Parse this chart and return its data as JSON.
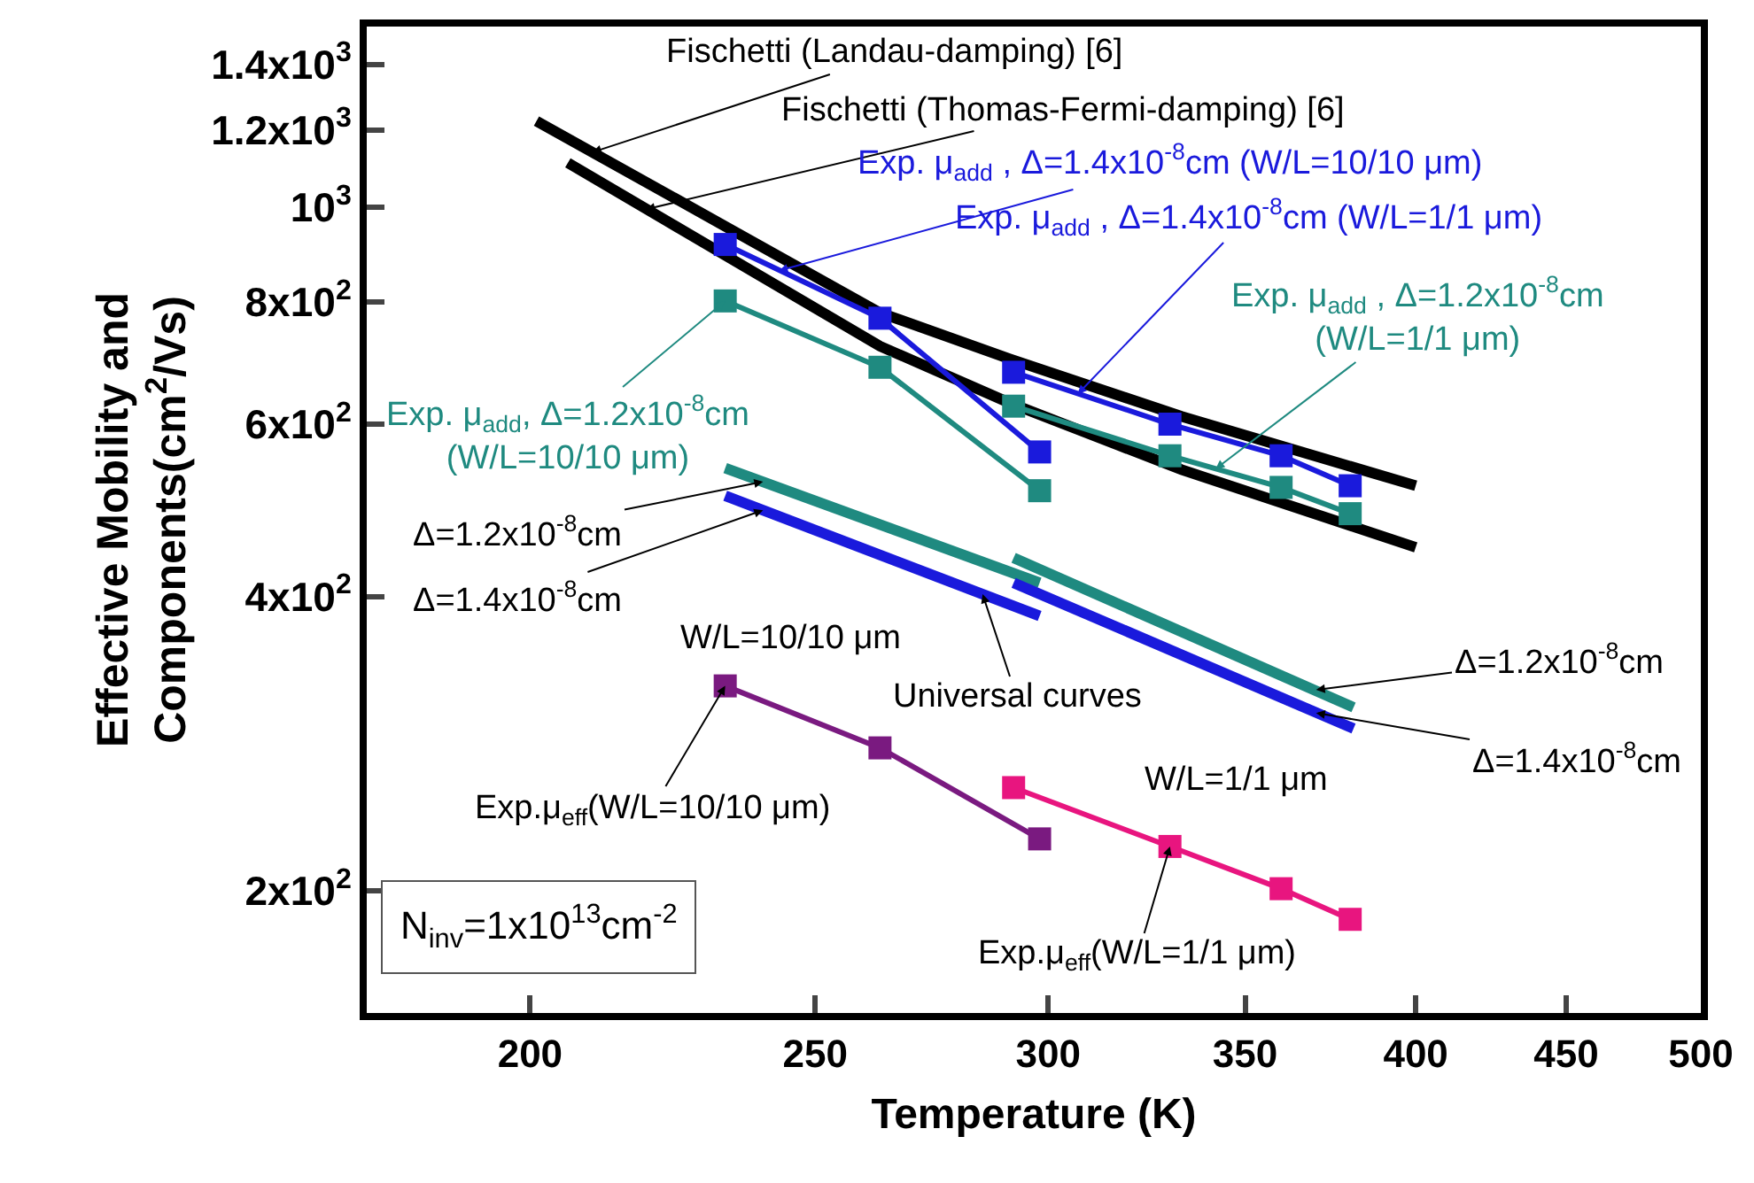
{
  "chart_data": {
    "type": "line",
    "xlabel": "Temperature (K)",
    "ylabel": "Effective Mobility and\nComponents(cm$^{2}$/Vs)",
    "log": "xy",
    "xlim": [
      176,
      500
    ],
    "ylim": [
      150,
      1530
    ],
    "xticks": [
      200,
      250,
      300,
      350,
      400,
      450,
      500
    ],
    "yticks": [
      {
        "value": 200,
        "label": "2x10$^{2}$"
      },
      {
        "value": 400,
        "label": "4x10$^{2}$"
      },
      {
        "value": 600,
        "label": "6x10$^{2}$"
      },
      {
        "value": 800,
        "label": "8x10$^{2}$"
      },
      {
        "value": 1000,
        "label": "10$^{3}$"
      },
      {
        "value": 1200,
        "label": "1.2x10$^{3}$"
      },
      {
        "value": 1400,
        "label": "1.4x10$^{3}$"
      }
    ],
    "series": [
      {
        "color": "#000000",
        "marker": "none",
        "x": [
          201,
          263,
          291,
          333,
          400
        ],
        "values": [
          1225,
          780,
          700,
          611,
          519
        ]
      },
      {
        "color": "#000000",
        "marker": "none",
        "x": [
          206,
          263,
          291,
          333,
          400
        ],
        "values": [
          1110,
          721,
          631,
          539,
          449
        ]
      },
      {
        "color": "#1a1adc",
        "marker": "square",
        "x": [
          233,
          263,
          298
        ],
        "values": [
          916,
          770,
          562
        ]
      },
      {
        "color": "#1f8a80",
        "marker": "square",
        "x": [
          233,
          263,
          298
        ],
        "values": [
          802,
          686,
          513
        ]
      },
      {
        "color": "#1a1adc",
        "marker": "square",
        "x": [
          292,
          330,
          360,
          380
        ],
        "values": [
          678,
          600,
          557,
          519
        ]
      },
      {
        "color": "#1f8a80",
        "marker": "square",
        "x": [
          292,
          330,
          360,
          380
        ],
        "values": [
          626,
          557,
          517,
          486
        ]
      },
      {
        "color": "#1f8a80",
        "marker": "none",
        "x": [
          233,
          298
        ],
        "values": [
          541,
          413
        ]
      },
      {
        "color": "#1a1adc",
        "marker": "none",
        "x": [
          233,
          298
        ],
        "values": [
          507,
          382
        ]
      },
      {
        "color": "#1f8a80",
        "marker": "none",
        "x": [
          292,
          381
        ],
        "values": [
          438,
          308
        ]
      },
      {
        "color": "#1a1adc",
        "marker": "none",
        "x": [
          292,
          381
        ],
        "values": [
          413,
          293
        ]
      },
      {
        "color": "#7a1a80",
        "marker": "square",
        "x": [
          233,
          263,
          298
        ],
        "values": [
          324,
          280,
          226
        ]
      },
      {
        "color": "#e8157f",
        "marker": "square",
        "x": [
          292,
          330,
          360,
          380
        ],
        "values": [
          255,
          222,
          201,
          187
        ]
      }
    ],
    "annotations": [
      {
        "text": "Fischetti (Landau-damping) [6]",
        "x": 210,
        "y": 1138
      },
      {
        "text": "Fischetti (Thomas-Fermi-damping) [6]",
        "x": 219,
        "y": 995
      },
      {
        "text": "Exp. μ$_{add}$ , Δ=1.4x10$^{-8}$cm (W/L=10/10 μm)",
        "x": 243,
        "y": 861
      },
      {
        "text": "Exp. μ$_{add}$ , Δ=1.4x10$^{-8}$cm (W/L=1/1 μm)",
        "x": 307,
        "y": 644
      },
      {
        "text": "Exp. μ$_{add}$ , Δ=1.2x10$^{-8}$cm\n(W/L=1/1 μm)",
        "x": 342,
        "y": 540
      },
      {
        "text": "Exp. μ$_{add}$, Δ=1.2x10$^{-8}$cm\n(W/L=10/10 μm)",
        "x": 233,
        "y": 802
      },
      {
        "text": "Δ=1.2x10$^{-8}$cm",
        "x": 240,
        "y": 524
      },
      {
        "text": "Δ=1.4x10$^{-8}$cm",
        "x": 240,
        "y": 490
      },
      "W/L=10/10 μm",
      {
        "text": "Universal curves",
        "x": 285,
        "y": 402
      },
      {
        "text": "Δ=1.2x10$^{-8}$cm",
        "x": 370,
        "y": 321
      },
      {
        "text": "Δ=1.4x10$^{-8}$cm",
        "x": 370,
        "y": 304
      },
      "W/L=1/1 μm",
      {
        "text": "Exp.μ$_{eff}$(W/L=10/10 μm)",
        "x": 233,
        "y": 324
      },
      {
        "text": "Exp.μ$_{eff}$(W/L=1/1 μm)",
        "x": 330,
        "y": 222
      },
      "N$_{inv}$=1x10$^{13}$cm$^{-2}$"
    ]
  }
}
